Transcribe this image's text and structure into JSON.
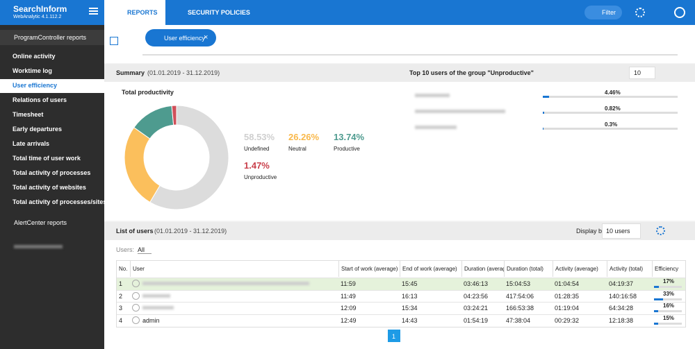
{
  "sidebar": {
    "brand": "SearchInform",
    "version": "WebAnalytic 4.1.112.2",
    "groups": [
      {
        "label": "ProgramController reports",
        "items": [
          "Online activity",
          "Worktime log",
          "User efficiency",
          "Relations of users",
          "Timesheet",
          "Early departures",
          "Late arrivals",
          "Total time of user work",
          "Total activity of processes",
          "Total activity of websites",
          "Total activity of processes/sites"
        ]
      },
      {
        "label": "AlertCenter reports"
      }
    ]
  },
  "nav": {
    "tabs": [
      "REPORTS",
      "SECURITY POLICIES"
    ],
    "filter": "Filter"
  },
  "tab_chip": "User efficiency",
  "summary": {
    "title": "Summary",
    "period": "(01.01.2019 - 31.12.2019)",
    "chart_title": "Total productivity",
    "segments": [
      {
        "name": "Undefined",
        "value": 58.53,
        "label": "58.53%",
        "color": "#dcdcdc",
        "text_color": "#cfcfcf"
      },
      {
        "name": "Neutral",
        "value": 26.26,
        "label": "26.26%",
        "color": "#fbbf5c",
        "text_color": "#f9b84a"
      },
      {
        "name": "Productive",
        "value": 13.74,
        "label": "13.74%",
        "color": "#4e9b8f",
        "text_color": "#4e9b8f"
      },
      {
        "name": "Unproductive",
        "value": 1.47,
        "label": "1.47%",
        "color": "#d0505a",
        "text_color": "#c9404b"
      }
    ]
  },
  "top": {
    "title": "Top 10 users of the group \"Unproductive\"",
    "count": "10",
    "scale_max": 100,
    "users": [
      {
        "value": 4.46,
        "label": "4.46%"
      },
      {
        "value": 0.82,
        "label": "0.82%"
      },
      {
        "value": 0.3,
        "label": "0.3%"
      }
    ]
  },
  "list": {
    "title": "List of users",
    "period": "(01.01.2019 - 31.12.2019)",
    "display_by_label": "Display by:",
    "display_by": "10 users",
    "users_label": "Users:",
    "users_filter": "All",
    "columns": [
      "No.",
      "User",
      "Start of work (average)",
      "End of work (average)",
      "Duration (average)",
      "Duration (total)",
      "Activity (average)",
      "Activity (total)",
      "Efficiency"
    ],
    "rows": [
      {
        "no": "1",
        "cells": [
          "11:59",
          "15:45",
          "03:46:13",
          "15:04:53",
          "01:04:54",
          "04:19:37"
        ],
        "efficiency": {
          "value": 17,
          "label": "17%"
        }
      },
      {
        "no": "2",
        "cells": [
          "11:49",
          "16:13",
          "04:23:56",
          "417:54:06",
          "01:28:35",
          "140:16:58"
        ],
        "efficiency": {
          "value": 33,
          "label": "33%"
        }
      },
      {
        "no": "3",
        "cells": [
          "12:09",
          "15:34",
          "03:24:21",
          "166:53:38",
          "01:19:04",
          "64:34:28"
        ],
        "efficiency": {
          "value": 16,
          "label": "16%"
        }
      },
      {
        "no": "4",
        "user": "admin",
        "cells": [
          "12:49",
          "14:43",
          "01:54:19",
          "47:38:04",
          "00:29:32",
          "12:18:38"
        ],
        "efficiency": {
          "value": 15,
          "label": "15%"
        }
      }
    ]
  },
  "pagination": {
    "current": "1"
  }
}
